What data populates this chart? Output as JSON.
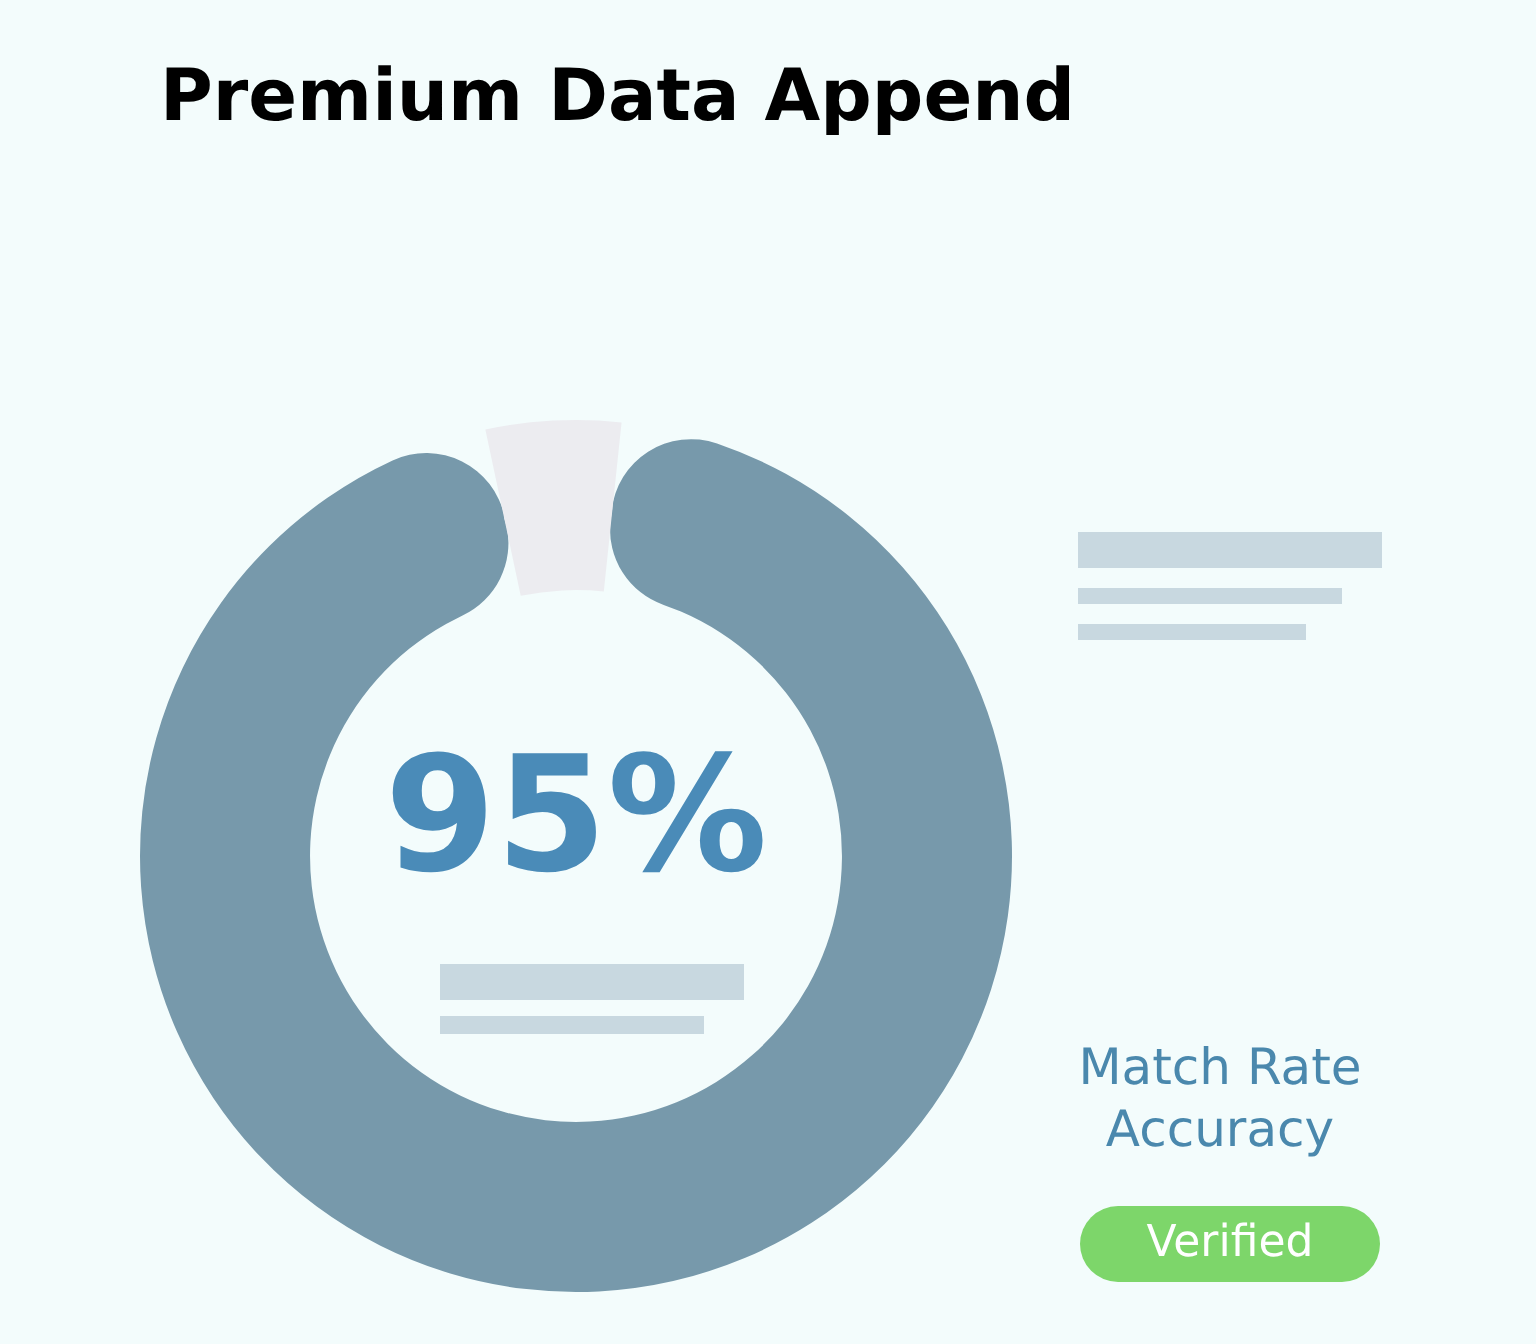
{
  "chart_data": {
    "type": "donut",
    "title": "Premium Data Append",
    "categories": [
      null,
      null
    ],
    "values": [
      95,
      5
    ],
    "colors": [
      "#7799ab",
      "#ececf0"
    ],
    "value_labels": [
      "95%",
      null
    ],
    "annotations": [
      "Match Rate Accuracy",
      "Verified"
    ],
    "legend": false
  }
}
